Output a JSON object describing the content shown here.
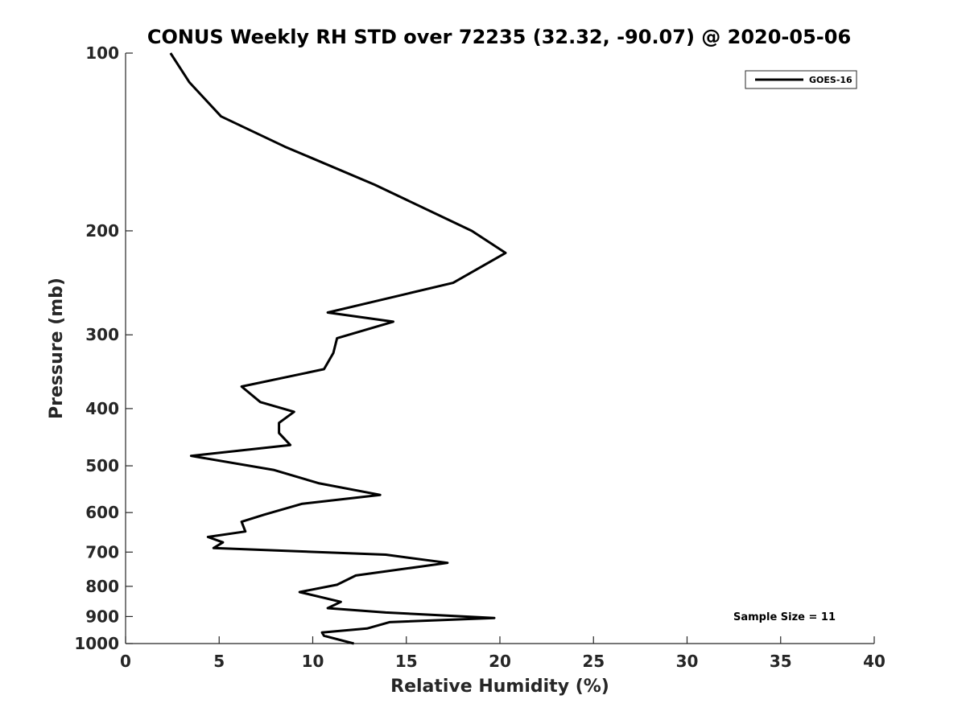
{
  "chart_data": {
    "type": "line",
    "title": "CONUS Weekly RH STD over 72235 (32.32, -90.07) @ 2020-05-06",
    "xlabel": "Relative Humidity (%)",
    "ylabel": "Pressure (mb)",
    "xlim": [
      0,
      40
    ],
    "ylim": [
      100,
      1000
    ],
    "y_scale": "log",
    "y_reversed": true,
    "x_ticks": [
      0,
      5,
      10,
      15,
      20,
      25,
      30,
      35,
      40
    ],
    "y_ticks": [
      100,
      200,
      300,
      400,
      500,
      600,
      700,
      800,
      900,
      1000
    ],
    "legend": {
      "position": "top-right",
      "entries": [
        "GOES-16"
      ]
    },
    "annotation": "Sample Size = 11",
    "series": [
      {
        "name": "GOES-16",
        "color": "#000000",
        "x": [
          2.4,
          3.4,
          5.1,
          8.5,
          13.3,
          18.5,
          20.3,
          17.5,
          10.8,
          14.3,
          11.3,
          11.1,
          10.6,
          6.2,
          7.2,
          9.0,
          8.2,
          8.2,
          8.8,
          3.5,
          7.9,
          10.3,
          13.6,
          9.4,
          7.4,
          6.2,
          6.4,
          4.4,
          5.2,
          4.7,
          13.9,
          17.2,
          12.3,
          11.3,
          9.3,
          11.5,
          10.8,
          13.9,
          19.7,
          14.1,
          12.9,
          10.5,
          10.6,
          12.2
        ],
        "y": [
          100,
          112,
          128,
          144,
          167,
          200,
          218,
          245,
          275,
          285,
          304,
          322,
          343,
          367,
          390,
          405,
          423,
          440,
          461,
          481,
          508,
          535,
          560,
          580,
          605,
          622,
          646,
          660,
          674,
          689,
          707,
          730,
          767,
          795,
          818,
          850,
          871,
          886,
          905,
          920,
          943,
          958,
          970,
          1000
        ]
      }
    ]
  }
}
